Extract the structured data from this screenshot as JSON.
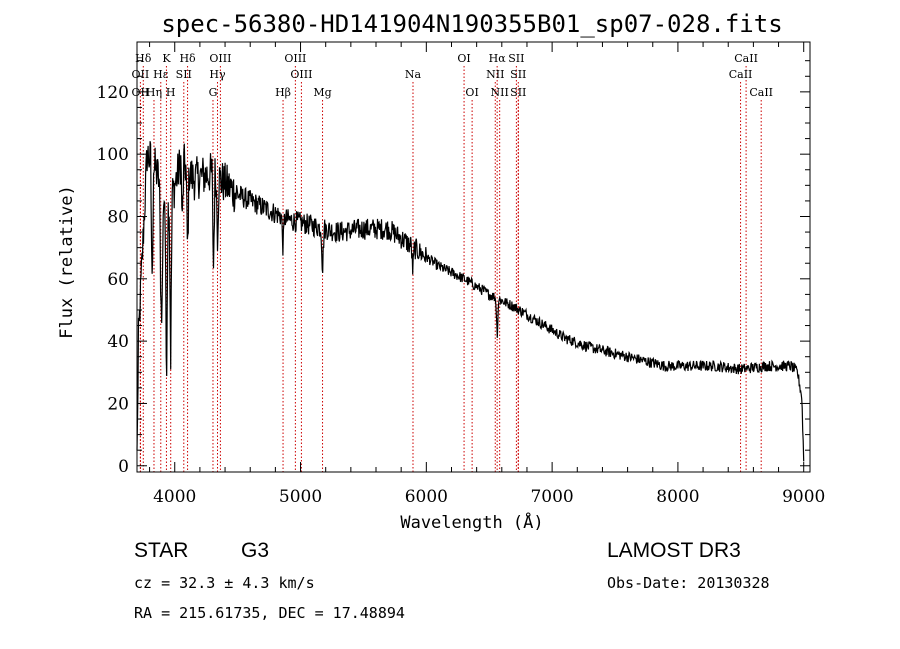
{
  "chart_data": {
    "type": "line",
    "title": "spec-56380-HD141904N190355B01_sp07-028.fits",
    "xlabel": "Wavelength (Å)",
    "ylabel": "Flux (relative)",
    "xlim": [
      3700,
      9050
    ],
    "ylim": [
      -2,
      136
    ],
    "xticks": [
      4000,
      5000,
      6000,
      7000,
      8000,
      9000
    ],
    "yticks": [
      0,
      20,
      40,
      60,
      80,
      100,
      120
    ],
    "continuum_anchors": {
      "x": [
        3700,
        3780,
        3850,
        3950,
        4050,
        4150,
        4300,
        4500,
        4700,
        4900,
        5100,
        5300,
        5500,
        5700,
        5900,
        6100,
        6300,
        6500,
        6600,
        6700,
        6900,
        7100,
        7300,
        7500,
        7700,
        7900,
        8100,
        8300,
        8500,
        8700,
        8900,
        8950,
        8985,
        9000
      ],
      "y": [
        30,
        100,
        95,
        82,
        98,
        92,
        94,
        87,
        83,
        79,
        77,
        75,
        76,
        76,
        70,
        64,
        60,
        55,
        53,
        51,
        46,
        41,
        38,
        36,
        34,
        32,
        32,
        32,
        31,
        32,
        32,
        30,
        22,
        2
      ]
    },
    "absorption_features": {
      "x": [
        3934,
        3968,
        4102,
        4308,
        4340,
        4861,
        5175,
        5893,
        6563,
        3820,
        3890,
        3900,
        4060
      ],
      "depth": [
        58,
        50,
        28,
        30,
        18,
        10,
        14,
        8,
        12,
        40,
        35,
        30,
        20
      ]
    },
    "spectral_lines": [
      {
        "name": "Hδ",
        "wavelength": 3750,
        "row": 1
      },
      {
        "name": "OII",
        "wavelength": 3727,
        "row": 2
      },
      {
        "name": "OII",
        "wavelength": 3727,
        "row": 3
      },
      {
        "name": "Hη",
        "wavelength": 3835,
        "row": 3
      },
      {
        "name": "Hε",
        "wavelength": 3889,
        "row": 2
      },
      {
        "name": "H",
        "wavelength": 3968,
        "row": 3
      },
      {
        "name": "K",
        "wavelength": 3934,
        "row": 1
      },
      {
        "name": "SII",
        "wavelength": 4072,
        "row": 2
      },
      {
        "name": "Hδ",
        "wavelength": 4102,
        "row": 1
      },
      {
        "name": "OIII",
        "wavelength": 4363,
        "row": 1
      },
      {
        "name": "Hγ",
        "wavelength": 4340,
        "row": 2
      },
      {
        "name": "G",
        "wavelength": 4304,
        "row": 3
      },
      {
        "name": "Hβ",
        "wavelength": 4861,
        "row": 3
      },
      {
        "name": "OIII",
        "wavelength": 4959,
        "row": 1
      },
      {
        "name": "OIII",
        "wavelength": 5007,
        "row": 2
      },
      {
        "name": "Mg",
        "wavelength": 5175,
        "row": 3
      },
      {
        "name": "Na",
        "wavelength": 5894,
        "row": 2
      },
      {
        "name": "OI",
        "wavelength": 6300,
        "row": 1
      },
      {
        "name": "OI",
        "wavelength": 6364,
        "row": 3
      },
      {
        "name": "Hα",
        "wavelength": 6563,
        "row": 1
      },
      {
        "name": "NII",
        "wavelength": 6548,
        "row": 2
      },
      {
        "name": "NII",
        "wavelength": 6583,
        "row": 3
      },
      {
        "name": "SII",
        "wavelength": 6716,
        "row": 1
      },
      {
        "name": "SII",
        "wavelength": 6731,
        "row": 2
      },
      {
        "name": "SII",
        "wavelength": 6731,
        "row": 3
      },
      {
        "name": "CaII",
        "wavelength": 8542,
        "row": 1
      },
      {
        "name": "CaII",
        "wavelength": 8498,
        "row": 2
      },
      {
        "name": "CaII",
        "wavelength": 8662,
        "row": 3
      }
    ],
    "colors": {
      "spectrum": "#000000",
      "lines": "#cc0000",
      "axes": "#000000"
    }
  },
  "info": {
    "class": "STAR",
    "subclass": "G3",
    "survey": "LAMOST DR3",
    "cz": "cz = 32.3 ± 4.3 km/s",
    "obs_date": "Obs-Date: 20130328",
    "coords": "RA = 215.61735, DEC =  17.48894"
  }
}
